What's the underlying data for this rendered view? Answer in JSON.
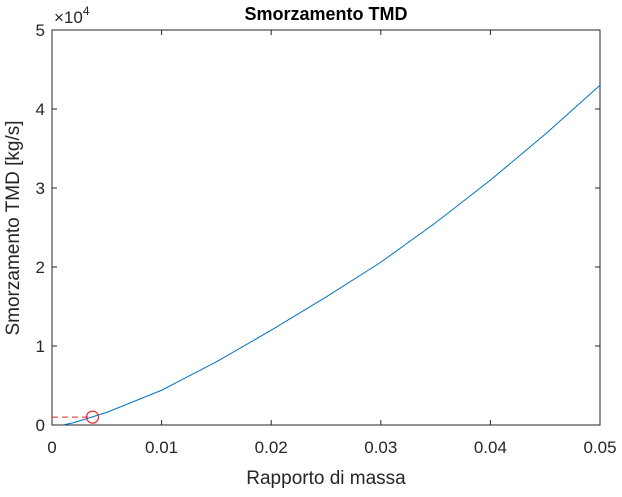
{
  "chart_data": {
    "type": "line",
    "title": "Smorzamento TMD",
    "xlabel": "Rapporto di massa",
    "ylabel": "Smorzamento TMD [kg/s]",
    "y_exponent": {
      "base": "×10",
      "power": "4"
    },
    "x": [
      0.001,
      0.002,
      0.005,
      0.01,
      0.015,
      0.02,
      0.025,
      0.03,
      0.035,
      0.04,
      0.045,
      0.05
    ],
    "series": [
      {
        "color": "#0072bd",
        "values": [
          0,
          0.03,
          0.16,
          0.44,
          0.8,
          1.2,
          1.62,
          2.06,
          2.56,
          3.1,
          3.68,
          4.3
        ]
      }
    ],
    "marker": {
      "x": 0.0037,
      "y": 0.1,
      "color": "#e8262a"
    },
    "xlim": [
      0,
      0.05
    ],
    "xticks": [
      0,
      0.01,
      0.02,
      0.03,
      0.04,
      0.05
    ],
    "ylim": [
      0,
      5
    ],
    "yticks": [
      0,
      1,
      2,
      3,
      4,
      5
    ],
    "grid": false
  }
}
